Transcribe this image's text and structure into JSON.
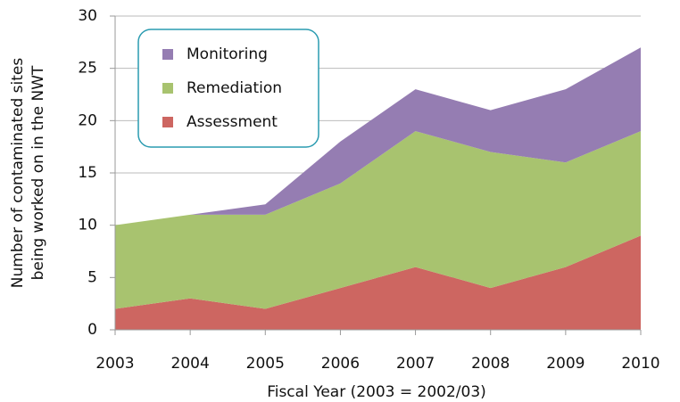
{
  "chart_data": {
    "type": "stacked_area",
    "xlabel": "Fiscal Year (2003 = 2002/03)",
    "ylabel": [
      "Number of contaminated sites",
      "being worked on in the NWT"
    ],
    "x": [
      2003,
      2004,
      2005,
      2006,
      2007,
      2008,
      2009,
      2010
    ],
    "series": [
      {
        "name": "Assessment",
        "color": "#cd6661",
        "values": [
          2,
          3,
          2,
          4,
          6,
          4,
          6,
          9
        ]
      },
      {
        "name": "Remediation",
        "color": "#a8c36f",
        "values": [
          8,
          8,
          9,
          10,
          13,
          13,
          10,
          10
        ]
      },
      {
        "name": "Monitoring",
        "color": "#957db2",
        "values": [
          0,
          0,
          1,
          4,
          4,
          4,
          7,
          8
        ]
      }
    ],
    "xlim": [
      2003,
      2010
    ],
    "xticks": [
      2003,
      2004,
      2005,
      2006,
      2007,
      2008,
      2009,
      2010
    ],
    "ylim": [
      0,
      30
    ],
    "yticks": [
      0,
      5,
      10,
      15,
      20,
      25,
      30
    ],
    "grid": true,
    "legend": "upper left"
  }
}
